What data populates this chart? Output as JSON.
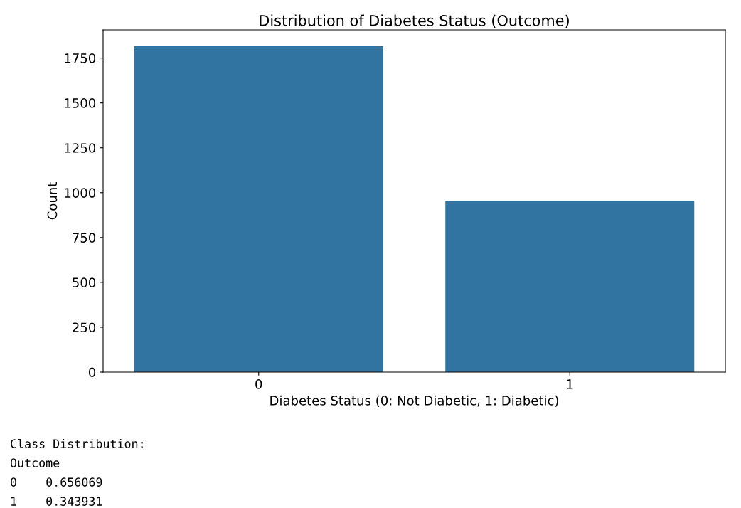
{
  "chart_data": {
    "type": "bar",
    "title": "Distribution of Diabetes Status (Outcome)",
    "xlabel": "Diabetes Status (0: Not Diabetic, 1: Diabetic)",
    "ylabel": "Count",
    "categories": [
      "0",
      "1"
    ],
    "values": [
      1816,
      952
    ],
    "color": "#3274a1",
    "ylim": [
      0,
      1907
    ],
    "yticks": [
      0,
      250,
      500,
      750,
      1000,
      1250,
      1500,
      1750
    ],
    "grid": false,
    "legend": false,
    "annotations": [
      "Class Distribution:",
      "Outcome",
      "0    0.656069",
      "1    0.343931"
    ]
  }
}
